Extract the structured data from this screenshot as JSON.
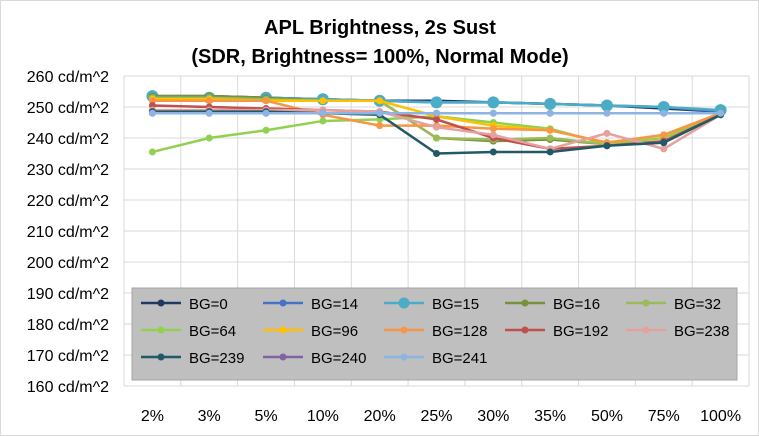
{
  "chart_data": {
    "type": "line",
    "title": "APL Brightness, 2s Sust",
    "subtitle": "(SDR, Brightness= 100%, Normal Mode)",
    "xlabel": "",
    "ylabel": "",
    "ylim": [
      160,
      260
    ],
    "y_tick_step": 10,
    "y_tick_suffix": " cd/m^2",
    "grid": true,
    "legend_position": "bottom-inside",
    "categories": [
      "2%",
      "3%",
      "5%",
      "10%",
      "20%",
      "25%",
      "30%",
      "35%",
      "50%",
      "75%",
      "100%"
    ],
    "series": [
      {
        "name": "BG=0",
        "color": "#1f3864",
        "values": [
          253.5,
          253.5,
          253,
          252.5,
          252,
          252,
          251.5,
          251,
          250.5,
          249.5,
          248.5
        ]
      },
      {
        "name": "BG=14",
        "color": "#4472c4",
        "values": [
          253.5,
          253.5,
          253,
          252.5,
          252,
          251.5,
          251.5,
          251,
          250.5,
          250,
          248.5
        ]
      },
      {
        "name": "BG=15",
        "color": "#4bacc6",
        "values": [
          253.5,
          253,
          253,
          252.5,
          252,
          251.5,
          251.5,
          251,
          250.5,
          250,
          249
        ]
      },
      {
        "name": "BG=16",
        "color": "#76923c",
        "values": [
          253.5,
          253.5,
          253,
          252,
          252,
          240,
          239,
          239.5,
          238,
          238.5,
          248
        ]
      },
      {
        "name": "BG=32",
        "color": "#9bbb59",
        "values": [
          253,
          253,
          252.5,
          252,
          252,
          240,
          239.5,
          240,
          238,
          238.5,
          248
        ]
      },
      {
        "name": "BG=64",
        "color": "#92d050",
        "values": [
          235.5,
          240,
          242.5,
          245.5,
          246,
          247,
          245,
          243,
          238,
          240,
          248
        ]
      },
      {
        "name": "BG=96",
        "color": "#ffc000",
        "values": [
          252.5,
          252.5,
          252,
          252,
          252,
          247,
          244,
          242.5,
          238.5,
          241,
          248
        ]
      },
      {
        "name": "BG=128",
        "color": "#f79646",
        "values": [
          252,
          252,
          252,
          247.5,
          244,
          244,
          243,
          242.5,
          238.5,
          241,
          248
        ]
      },
      {
        "name": "BG=192",
        "color": "#c0504d",
        "values": [
          250.5,
          250,
          249.5,
          249,
          248.5,
          246,
          240,
          236.5,
          237.5,
          239,
          247.5
        ]
      },
      {
        "name": "BG=238",
        "color": "#e6a19f",
        "values": [
          249,
          249,
          249,
          249,
          248.5,
          243.5,
          241,
          236.5,
          241.5,
          236.5,
          247.5
        ]
      },
      {
        "name": "BG=239",
        "color": "#215968",
        "values": [
          248.5,
          248.5,
          248.5,
          248,
          247.5,
          235,
          235.5,
          235.5,
          237.5,
          238.5,
          247.5
        ]
      },
      {
        "name": "BG=240",
        "color": "#8064a2",
        "values": [
          248,
          248,
          248,
          248,
          248,
          248,
          248,
          248,
          248,
          248,
          248
        ]
      },
      {
        "name": "BG=241",
        "color": "#8eb4e3",
        "values": [
          248,
          248,
          248,
          248,
          248,
          248,
          248,
          248,
          248,
          248,
          248
        ]
      }
    ]
  }
}
